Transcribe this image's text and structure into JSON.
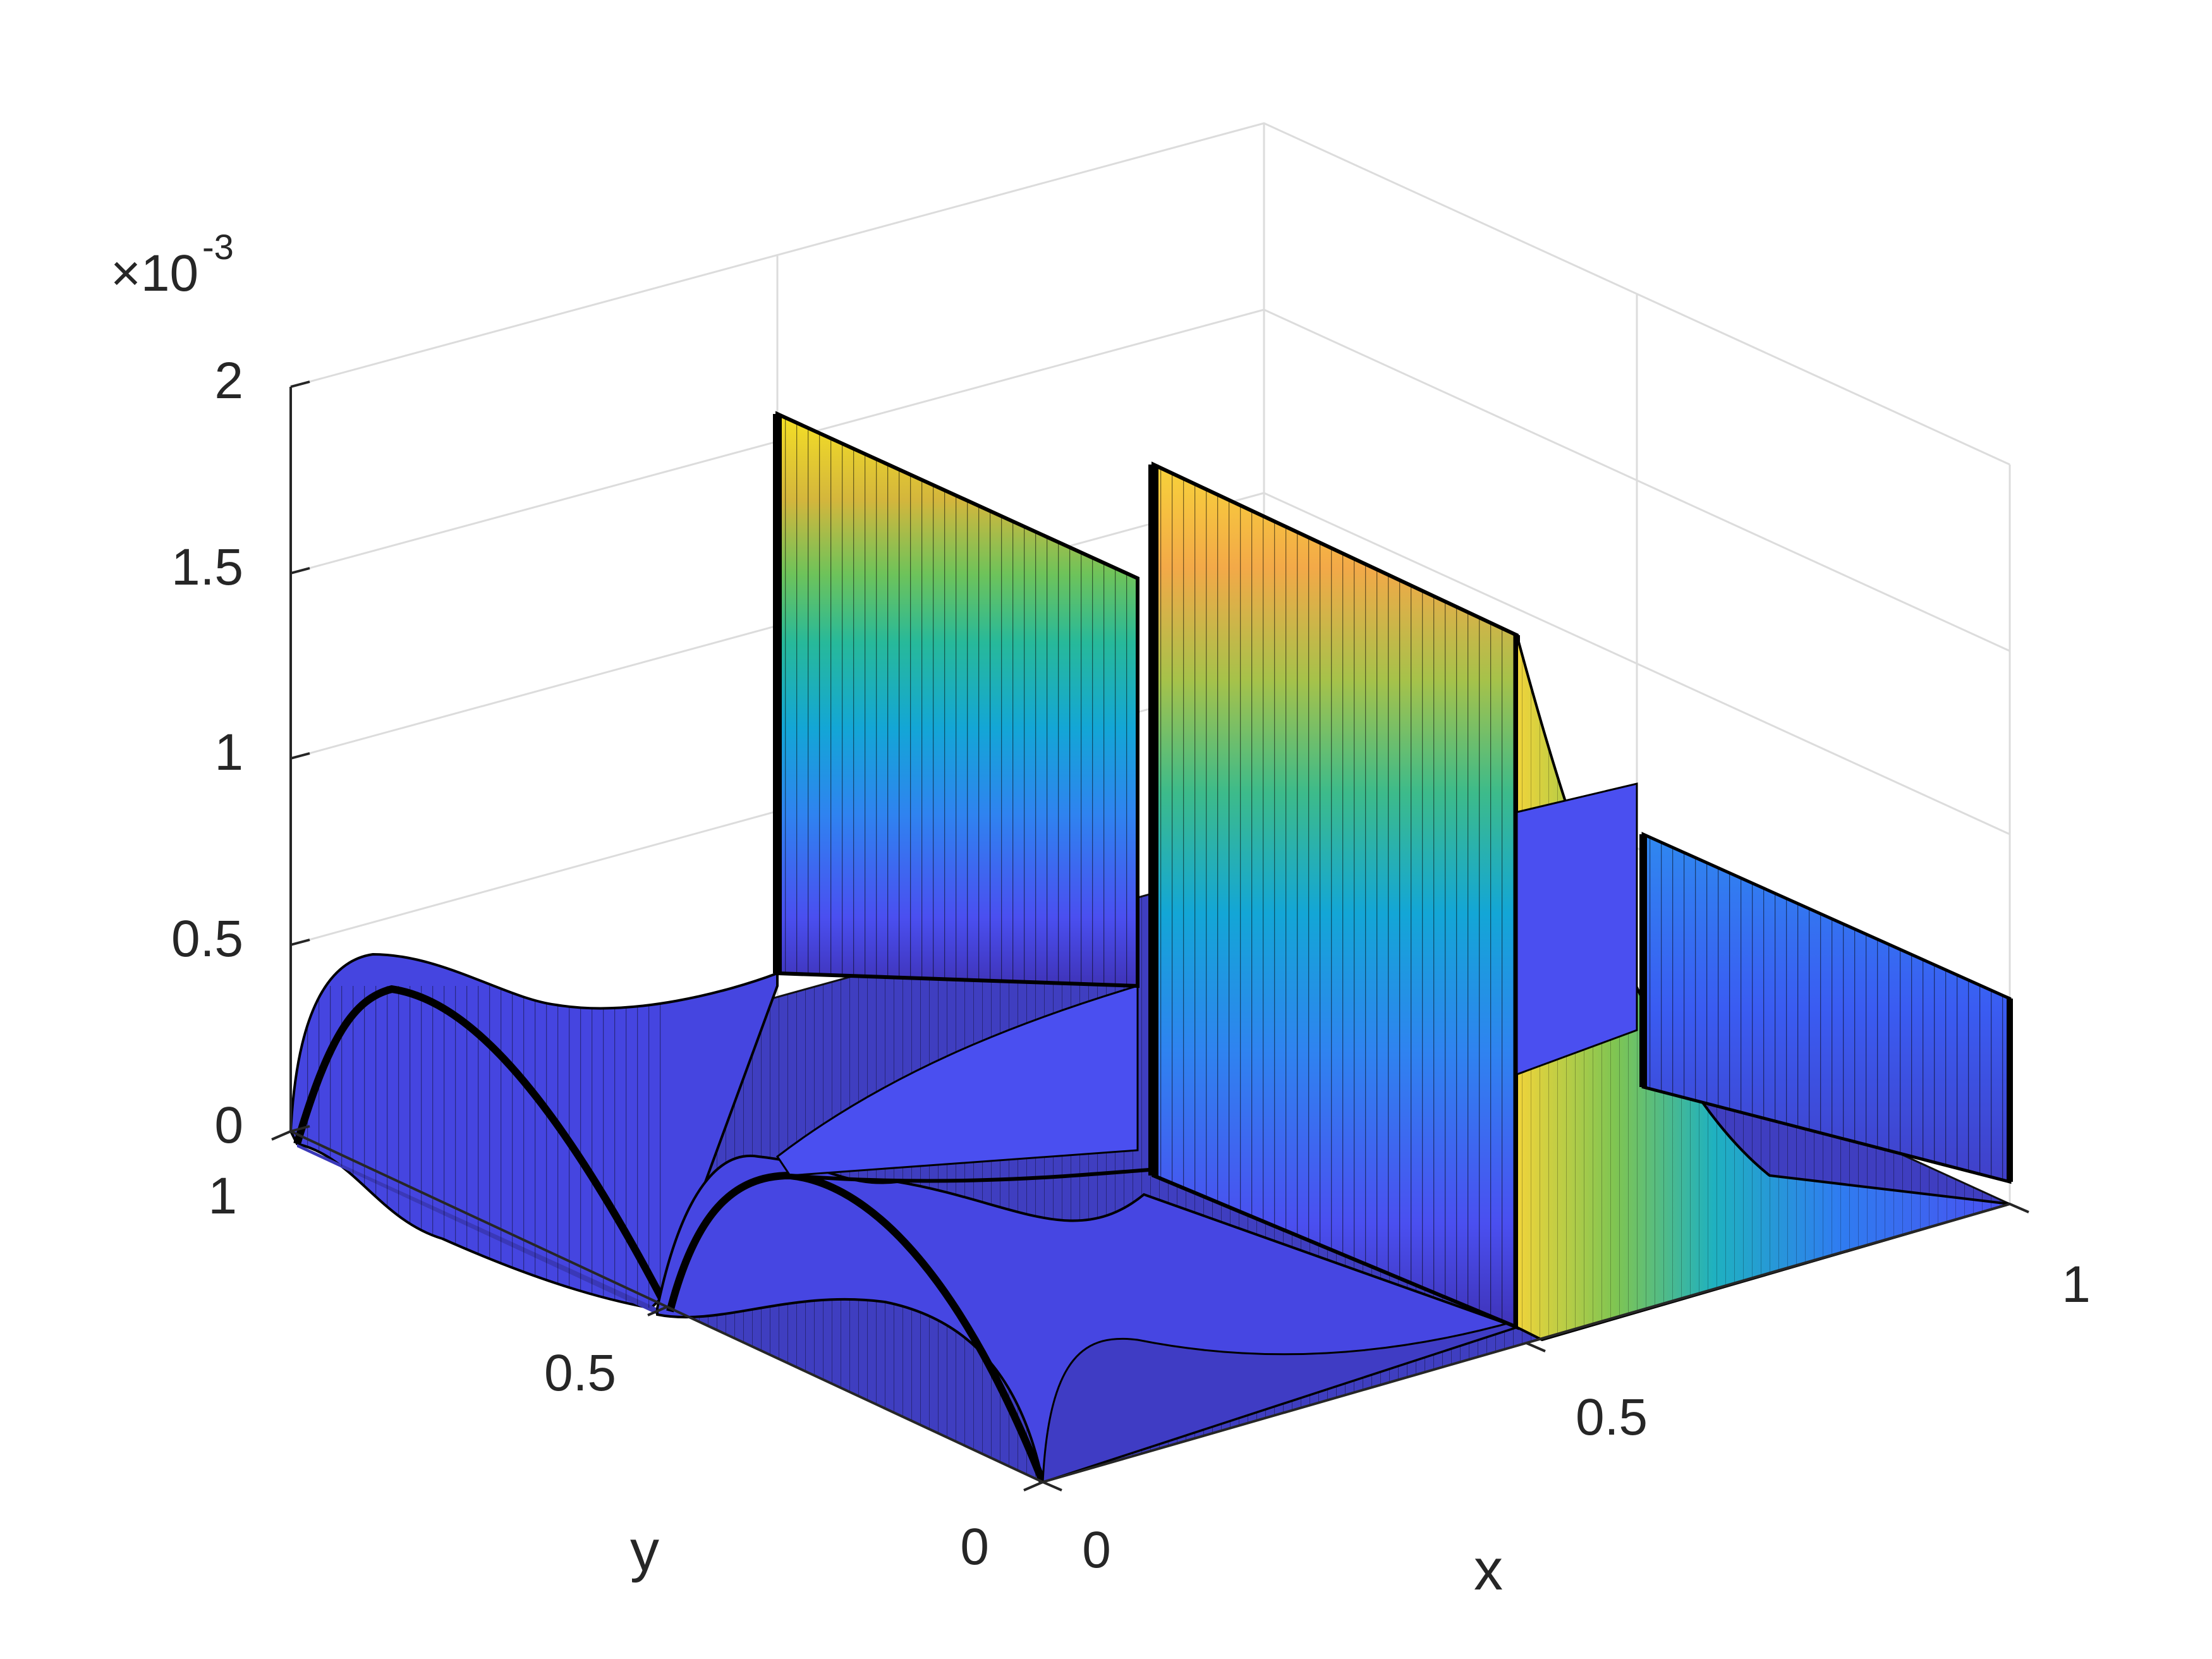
{
  "chart_data": {
    "type": "surface",
    "xlabel": "x",
    "ylabel": "y",
    "zlabel": "",
    "xlim": [
      0,
      1
    ],
    "ylim": [
      0,
      1
    ],
    "zlim": [
      0,
      0.002
    ],
    "x_ticks": [
      "0",
      "0.5",
      "1"
    ],
    "y_ticks": [
      "0",
      "0.5",
      "1"
    ],
    "z_ticks": [
      "0",
      "0.5",
      "1",
      "1.5",
      "2"
    ],
    "z_exponent": {
      "base": "×10",
      "power": "-3"
    },
    "grid": true,
    "colormap": "parula",
    "features": [
      {
        "kind": "vertical sheet",
        "x": 0.5,
        "y_range": [
          0.5,
          1
        ],
        "z_max": 0.0019
      },
      {
        "kind": "vertical sheet",
        "x": 0.5,
        "y_range": [
          0,
          0.5
        ],
        "z_max": 0.0018
      },
      {
        "kind": "vertical sheet",
        "x": 0.5,
        "y_range": [
          0.5,
          1
        ],
        "z_max": 0.00078
      },
      {
        "kind": "vertical sheet",
        "x": 1.0,
        "y_range": [
          0,
          0.5
        ],
        "z_max": 0.00078
      },
      {
        "kind": "ridge",
        "x": 0.0,
        "y_range": [
          0,
          1
        ],
        "z_max": 0.00045
      },
      {
        "kind": "ridge",
        "y": 0.5,
        "x_range": [
          0,
          0.5
        ],
        "z_max": 0.00025
      }
    ]
  }
}
